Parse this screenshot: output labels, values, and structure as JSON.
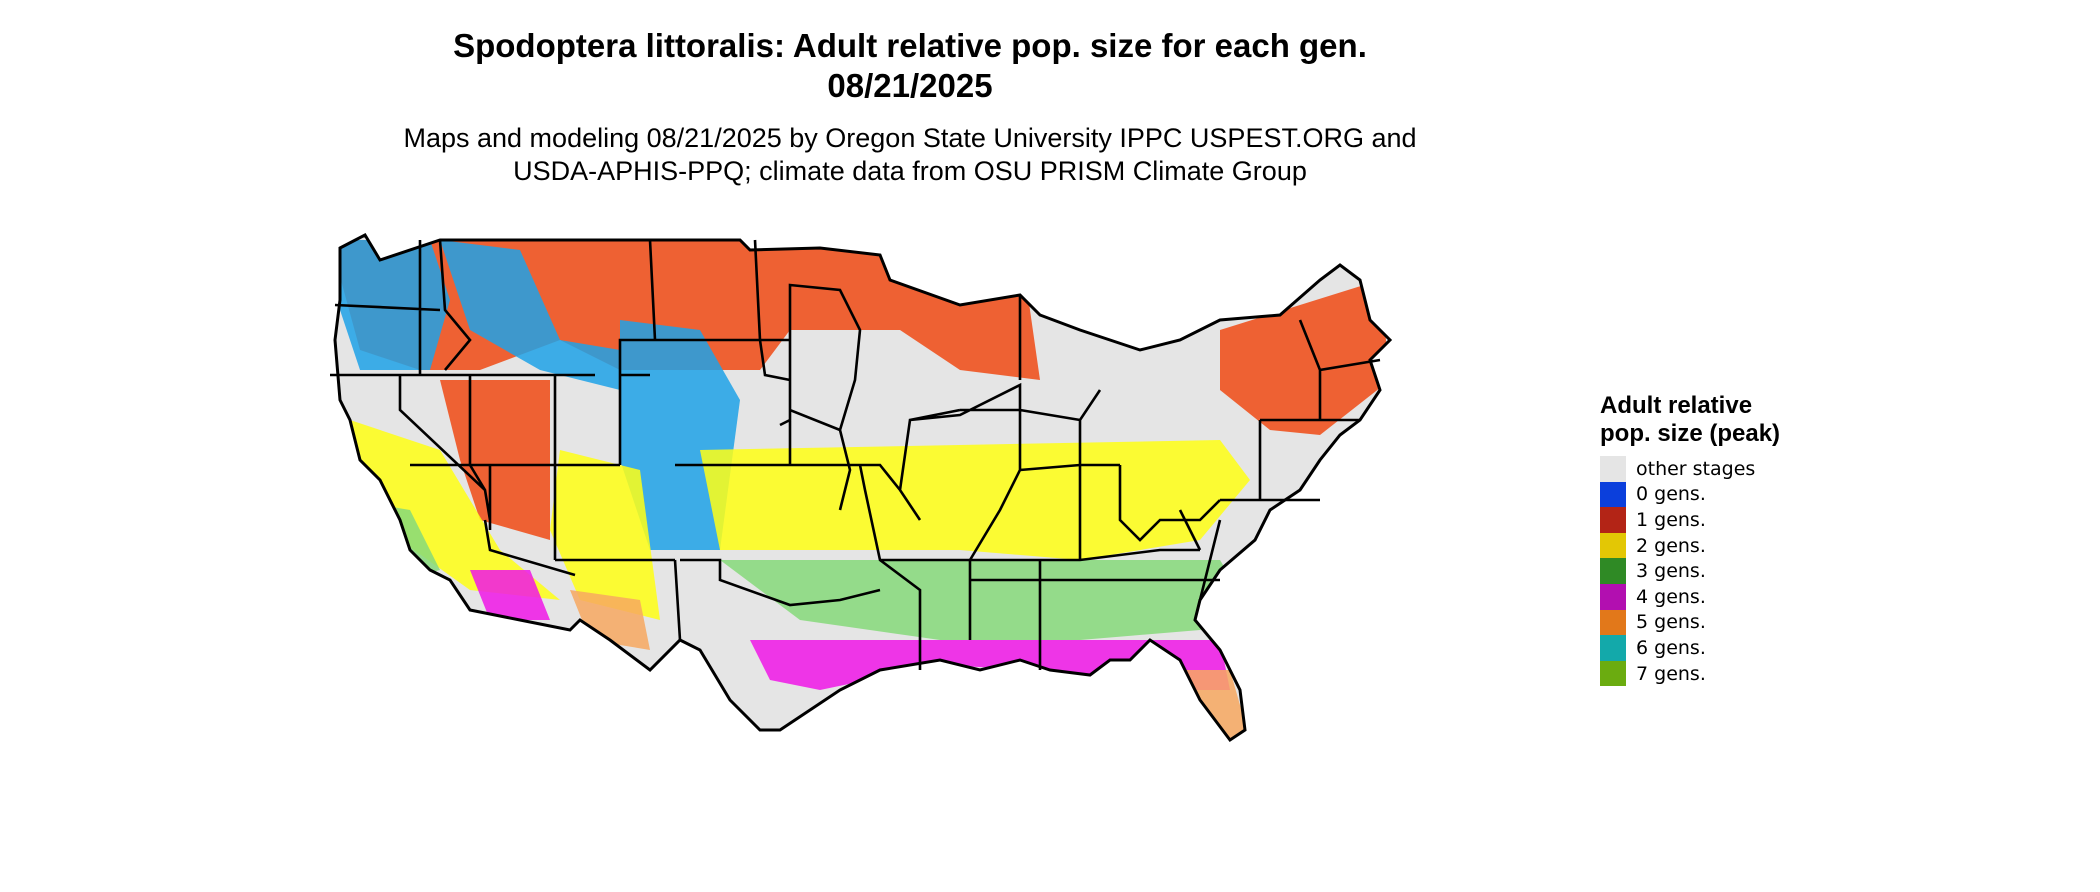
{
  "title_line1": "Spodoptera littoralis: Adult relative pop. size for each gen.",
  "title_line2": "08/21/2025",
  "subtitle_line1": "Maps and modeling 08/21/2025 by Oregon State University IPPC USPEST.ORG and",
  "subtitle_line2": "USDA-APHIS-PPQ; climate data from OSU PRISM Climate Group",
  "legend": {
    "title": "Adult relative pop. size (peak)",
    "items": [
      {
        "label": "other stages",
        "color": "#e5e5e5"
      },
      {
        "label": "0 gens.",
        "color": "#0b3fdc"
      },
      {
        "label": "1 gens.",
        "color": "#b32416"
      },
      {
        "label": "2 gens.",
        "color": "#e3c705"
      },
      {
        "label": "3 gens.",
        "color": "#2f8a25"
      },
      {
        "label": "4 gens.",
        "color": "#b20fb0"
      },
      {
        "label": "5 gens.",
        "color": "#e2781a"
      },
      {
        "label": "6 gens.",
        "color": "#13a9aa"
      },
      {
        "label": "7 gens.",
        "color": "#6bac10"
      }
    ]
  },
  "map_colors": {
    "base": "#e5e5e5",
    "gen0": "#1fa2e8",
    "gen1": "#f04a14",
    "gen2": "#ffff14",
    "gen3": "#86d97a",
    "gen4": "#f016e8",
    "gen5": "#f7a860",
    "gen6": "#3fe1ef",
    "borders": "#000000"
  }
}
